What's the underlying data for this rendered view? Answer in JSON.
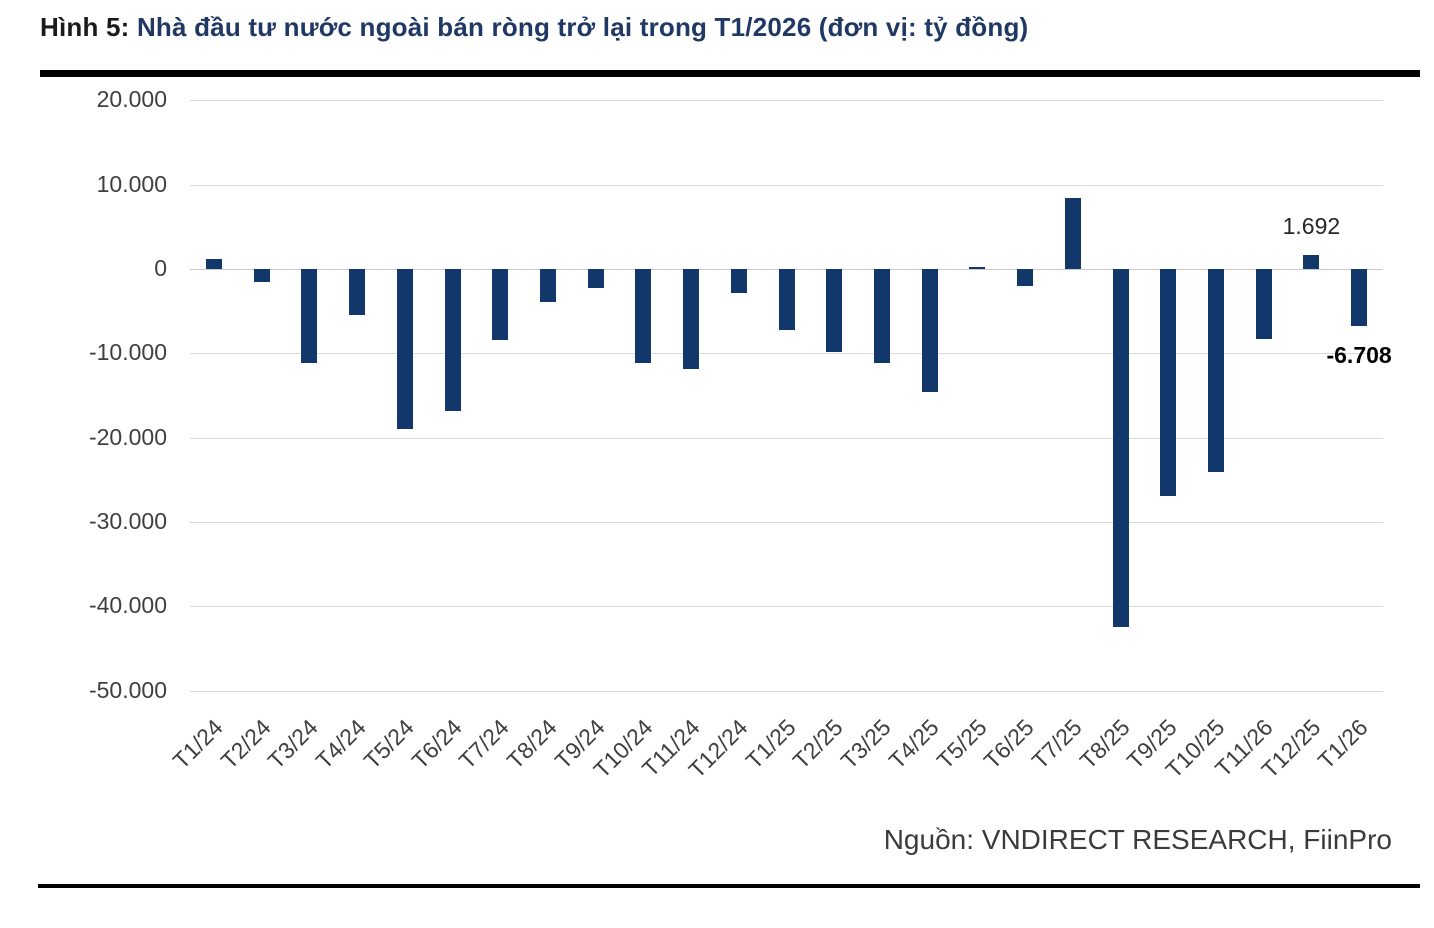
{
  "figure": {
    "label": "Hình 5:",
    "title": " Nhà đầu tư nước ngoài bán ròng trở lại trong T1/2026 (đơn vị: tỷ đồng)",
    "source": "Nguồn: VNDIRECT RESEARCH, FiinPro"
  },
  "colors": {
    "bar": "#12386b",
    "title_accent": "#1f3864",
    "grid": "#d9d9d9",
    "axis_text": "#3f3f3f",
    "rule": "#000000"
  },
  "chart_data": {
    "type": "bar",
    "title": "",
    "xlabel": "",
    "ylabel": "",
    "unit": "tỷ đồng",
    "grid": true,
    "legend": false,
    "ylim": [
      -50000,
      20000
    ],
    "ytick_labels": [
      "20.000",
      "10.000",
      "0",
      "-10.000",
      "-20.000",
      "-30.000",
      "-40.000",
      "-50.000"
    ],
    "ytick_values": [
      20000,
      10000,
      0,
      -10000,
      -20000,
      -30000,
      -40000,
      -50000
    ],
    "categories": [
      "T1/24",
      "T2/24",
      "T3/24",
      "T4/24",
      "T5/24",
      "T6/24",
      "T7/24",
      "T8/24",
      "T9/24",
      "T10/24",
      "T11/24",
      "T12/24",
      "T1/25",
      "T2/25",
      "T3/25",
      "T4/25",
      "T5/25",
      "T6/25",
      "T7/25",
      "T8/25",
      "T9/25",
      "T10/25",
      "T11/26",
      "T12/25",
      "T1/26"
    ],
    "values": [
      1200,
      -1500,
      -11200,
      -5500,
      -19000,
      -16800,
      -8400,
      -3900,
      -2200,
      -11100,
      -11900,
      -2900,
      -7200,
      -9800,
      -11100,
      -14600,
      300,
      -2000,
      8400,
      -42500,
      -26900,
      -24100,
      -8300,
      1692,
      -6708
    ],
    "annotations": [
      {
        "index": 23,
        "text": "1.692",
        "bold": false
      },
      {
        "index": 24,
        "text": "-6.708",
        "bold": true
      }
    ]
  }
}
